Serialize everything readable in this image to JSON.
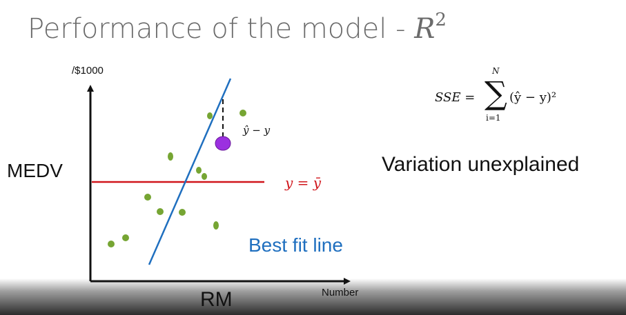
{
  "title": "Performance of the model - ",
  "title_math": "R",
  "title_sup": "2",
  "labels": {
    "y_axis": "MEDV",
    "x_axis": "RM",
    "y_unit": "/$1000",
    "x_unit": "Number",
    "best_fit": "Best fit line",
    "mean_line": "y = ȳ",
    "residual": "ŷ − y",
    "variation": "Variation unexplained"
  },
  "formula": {
    "lhs": "SSE =",
    "sigma": "∑",
    "upper": "N",
    "lower": "i=1",
    "body": "(ŷ − y)²"
  },
  "colors": {
    "points": "#76a533",
    "highlight": "#9b30e0",
    "best_fit": "#1f6fbf",
    "mean": "#d0141a",
    "title": "#6b6b6b"
  }
}
